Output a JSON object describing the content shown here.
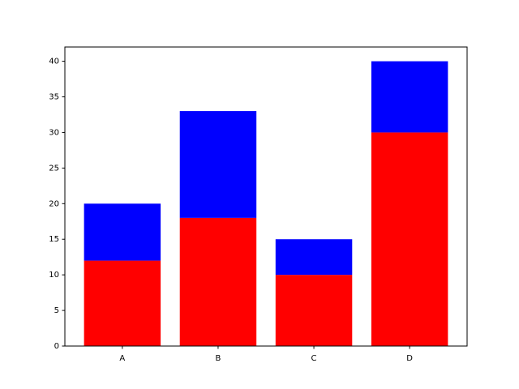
{
  "chart_data": {
    "type": "bar",
    "stacked": true,
    "categories": [
      "A",
      "B",
      "C",
      "D"
    ],
    "series": [
      {
        "color": "red",
        "values": [
          12,
          18,
          10,
          30
        ]
      },
      {
        "color": "blue",
        "values": [
          8,
          15,
          5,
          10
        ]
      }
    ],
    "ylim": [
      0,
      42
    ],
    "yticks": [
      0,
      5,
      10,
      15,
      20,
      25,
      30,
      35,
      40
    ],
    "grid": false
  }
}
